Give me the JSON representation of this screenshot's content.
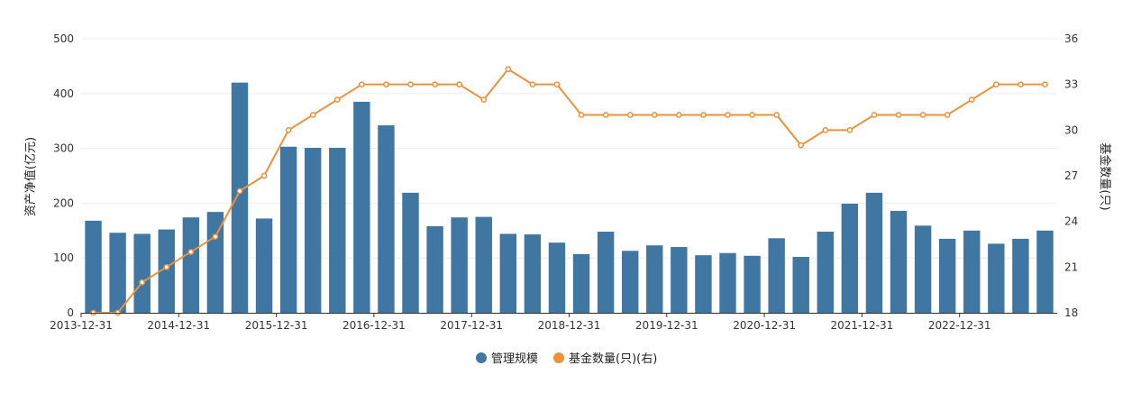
{
  "chart_data": {
    "type": "bar",
    "y_left_label": "资产净值(亿元)",
    "y_right_label": "基金数量(只)",
    "y_left_ticks": [
      "0",
      "100",
      "200",
      "300",
      "400",
      "500"
    ],
    "y_right_ticks": [
      "18",
      "21",
      "24",
      "27",
      "30",
      "33",
      "36"
    ],
    "ylim_left": [
      0,
      500
    ],
    "ylim_right": [
      18,
      36
    ],
    "x_tick_labels": [
      "2013-12-31",
      "2014-12-31",
      "2015-12-31",
      "2016-12-31",
      "2017-12-31",
      "2018-12-31",
      "2019-12-31",
      "2020-12-31",
      "2021-12-31",
      "2022-12-31"
    ],
    "grid": true,
    "legend_position": "bottom-center",
    "colors": {
      "bar": "#3f77a2",
      "line": "#eb923b",
      "grid": "#eeeeee",
      "axis": "#333333"
    },
    "categories": [
      "2013-12-31",
      "2014-03-31",
      "2014-06-30",
      "2014-09-30",
      "2014-12-31",
      "2015-03-31",
      "2015-06-30",
      "2015-09-30",
      "2015-12-31",
      "2016-03-31",
      "2016-06-30",
      "2016-09-30",
      "2016-12-31",
      "2017-03-31",
      "2017-06-30",
      "2017-09-30",
      "2017-12-31",
      "2018-03-31",
      "2018-06-30",
      "2018-09-30",
      "2018-12-31",
      "2019-03-31",
      "2019-06-30",
      "2019-09-30",
      "2019-12-31",
      "2020-03-31",
      "2020-06-30",
      "2020-09-30",
      "2020-12-31",
      "2021-03-31",
      "2021-06-30",
      "2021-09-30",
      "2021-12-31",
      "2022-03-31",
      "2022-06-30",
      "2022-09-30",
      "2022-12-31",
      "2023-03-31",
      "2023-06-30",
      "2023-09-30"
    ],
    "series": [
      {
        "name": "管理规模",
        "type": "bar",
        "axis": "left",
        "values": [
          168,
          146,
          144,
          152,
          174,
          184,
          420,
          172,
          303,
          301,
          301,
          385,
          342,
          219,
          158,
          174,
          175,
          144,
          143,
          128,
          107,
          148,
          113,
          123,
          120,
          105,
          109,
          104,
          136,
          102,
          148,
          199,
          219,
          186,
          159,
          135,
          150,
          126,
          135,
          150
        ]
      },
      {
        "name": "基金数量(只)(右)",
        "type": "line",
        "axis": "right",
        "values": [
          18,
          18,
          20,
          21,
          22,
          23,
          26,
          27,
          30,
          31,
          32,
          33,
          33,
          33,
          33,
          33,
          32,
          34,
          33,
          33,
          31,
          31,
          31,
          31,
          31,
          31,
          31,
          31,
          31,
          29,
          30,
          30,
          31,
          31,
          31,
          31,
          32,
          33,
          33,
          33
        ]
      }
    ]
  }
}
